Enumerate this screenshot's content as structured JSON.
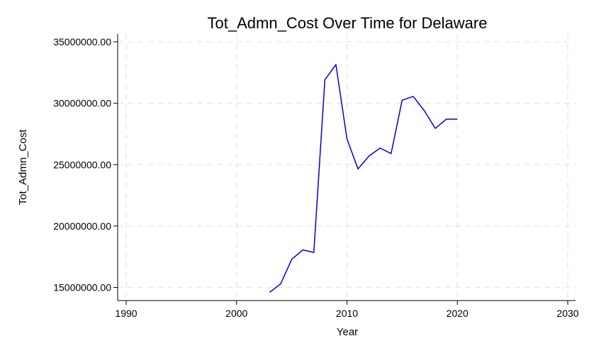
{
  "chart_data": {
    "type": "line",
    "title": "Tot_Admn_Cost Over Time for Delaware",
    "xlabel": "Year",
    "ylabel": "Tot_Admn_Cost",
    "xlim": [
      1990,
      2030
    ],
    "ylim": [
      15000000,
      35000000
    ],
    "x_ticks": [
      1990,
      2000,
      2010,
      2020,
      2030
    ],
    "y_ticks": [
      15000000,
      20000000,
      25000000,
      30000000,
      35000000
    ],
    "x_tick_labels": [
      "1990",
      "2000",
      "2010",
      "2020",
      "2030"
    ],
    "y_tick_labels": [
      "15000000.00",
      "20000000.00",
      "25000000.00",
      "30000000.00",
      "35000000.00"
    ],
    "grid": true,
    "series": [
      {
        "color": "#0000dd",
        "x": [
          2003,
          2004,
          2005,
          2006,
          2007,
          2008,
          2009,
          2010,
          2011,
          2012,
          2013,
          2014,
          2015,
          2016,
          2017,
          2018,
          2019,
          2020
        ],
        "values": [
          14600000,
          15300000,
          17300000,
          18050000,
          17850000,
          31900000,
          33150000,
          27100000,
          24650000,
          25700000,
          26350000,
          25900000,
          30250000,
          30550000,
          29400000,
          27950000,
          28700000,
          28700000
        ]
      }
    ]
  }
}
